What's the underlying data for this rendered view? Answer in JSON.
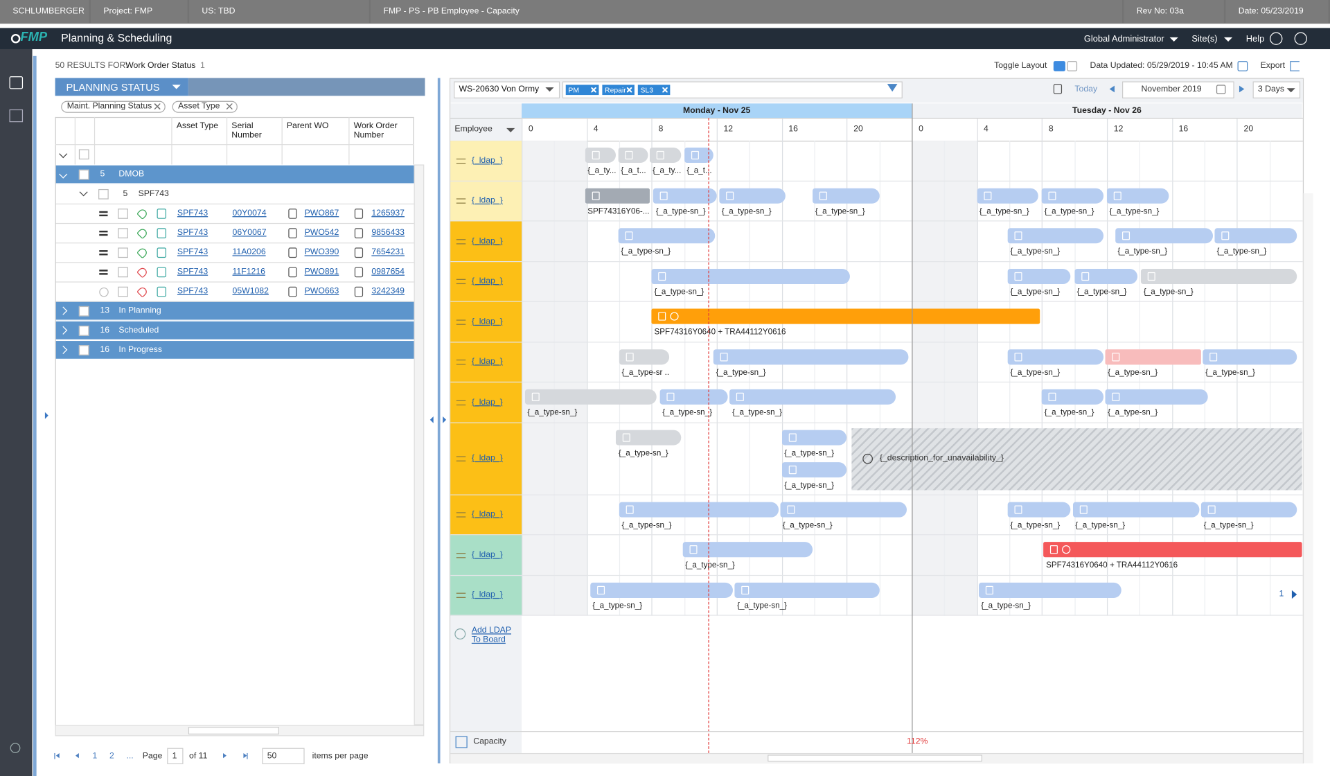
{
  "header": {
    "segments": [
      "SCHLUMBERGER",
      "Project:  FMP",
      "US:  TBD",
      "FMP - PS - PB Employee - Capacity",
      "Rev No:  03a",
      "Date:  05/23/2019"
    ],
    "logo": "FMP",
    "app_title": "Planning & Scheduling",
    "user": "Global Administrator",
    "sites": "Site(s)",
    "help": "Help"
  },
  "list": {
    "results_label": "50 RESULTS FOR:",
    "results_field": "Work Order Status",
    "results_count": "1",
    "group_by": "PLANNING STATUS",
    "filters": [
      "Maint. Planning Status",
      "Asset Type"
    ],
    "columns": [
      "Asset Type",
      "Serial Number",
      "Parent WO",
      "Work Order Number"
    ],
    "groups": [
      {
        "count": 5,
        "name": "DMOB"
      },
      {
        "count": 13,
        "name": "In Planning"
      },
      {
        "count": 16,
        "name": "Scheduled"
      },
      {
        "count": 16,
        "name": "In Progress"
      }
    ],
    "subgroup": {
      "count": 5,
      "name": "SPF743"
    },
    "rows": [
      {
        "asset": "SPF743",
        "serial": "00Y0074",
        "parent": "PWO867",
        "wo": "1265937",
        "tag": "#3aa757"
      },
      {
        "asset": "SPF743",
        "serial": "06Y0067",
        "parent": "PWO542",
        "wo": "9856433",
        "tag": "#3aa757"
      },
      {
        "asset": "SPF743",
        "serial": "11A0206",
        "parent": "PWO390",
        "wo": "7654231",
        "tag": "#3aa757"
      },
      {
        "asset": "SPF743",
        "serial": "11F1216",
        "parent": "PWO891",
        "wo": "0987654",
        "tag": "#e0474c"
      },
      {
        "asset": "SPF743",
        "serial": "05W1082",
        "parent": "PWO663",
        "wo": "3242349",
        "tag": "#e0474c",
        "disabled": true
      }
    ],
    "pager": {
      "pages": [
        "1",
        "2",
        "..."
      ],
      "page_label": "Page",
      "page": "1",
      "of": "of 11",
      "size": "50",
      "size_label": "items per page"
    }
  },
  "board": {
    "toggle": "Toggle Layout",
    "updated": "Data Updated: 05/29/2019 - 10:45 AM",
    "export": "Export",
    "name": "WS-20630 Von Ormy",
    "tags": [
      "PM",
      "Repair",
      "SL3"
    ],
    "today": "Today",
    "month": "November 2019",
    "range": "3 Days",
    "resource_col": "Employee",
    "days": [
      "Monday - Nov 25",
      "Tuesday - Nov 26"
    ],
    "hours": [
      0,
      4,
      8,
      12,
      16,
      20
    ],
    "now": 11.5,
    "palette": {
      "blue": "#b6cdf1",
      "gray": "#d5d8dc",
      "dark": "#a3aab3",
      "orange": "#ff9f0a",
      "pink": "#f8bcbc",
      "red": "#f4585a"
    },
    "rows": [
      {
        "label": "{_ldap_}",
        "color": "#fdf0b4",
        "events": [
          {
            "start": 3.9,
            "end": 5.8,
            "label": "{_a_ty...",
            "kind": "gray"
          },
          {
            "start": 5.95,
            "end": 7.8,
            "label": "{_a_t...",
            "kind": "gray"
          },
          {
            "start": 7.9,
            "end": 9.8,
            "label": "{_a_ty...",
            "kind": "gray"
          },
          {
            "start": 10.0,
            "end": 11.8,
            "label": "{_a_t...",
            "kind": "blue"
          }
        ]
      },
      {
        "label": "{_ldap_}",
        "color": "#fdf0b4",
        "events": [
          {
            "start": 3.9,
            "end": 7.9,
            "label": "SPF74316Y06-...",
            "kind": "dark"
          },
          {
            "start": 8.1,
            "end": 12.0,
            "label": "{_a_type-sn_}",
            "kind": "blue"
          },
          {
            "start": 12.15,
            "end": 16.2,
            "label": "{_a_type-sn_}",
            "kind": "blue"
          },
          {
            "start": 17.9,
            "end": 22.0,
            "label": "{_a_type-sn_}",
            "kind": "blue"
          },
          {
            "start": 28.0,
            "end": 31.8,
            "label": "{_a_type-sn_}",
            "kind": "blue"
          },
          {
            "start": 32.0,
            "end": 35.8,
            "label": "{_a_type-sn_}",
            "kind": "blue"
          },
          {
            "start": 36.0,
            "end": 39.8,
            "label": "{_a_type-sn_}",
            "kind": "blue"
          }
        ]
      },
      {
        "label": "{_ldap_}",
        "color": "#fcbf16",
        "events": [
          {
            "start": 5.95,
            "end": 11.9,
            "label": "{_a_type-sn_}",
            "kind": "blue"
          },
          {
            "start": 29.9,
            "end": 35.8,
            "label": "{_a_type-sn_}",
            "kind": "blue"
          },
          {
            "start": 36.5,
            "end": 42.5,
            "label": "{_a_type-sn_}",
            "kind": "blue"
          },
          {
            "start": 42.6,
            "end": 47.7,
            "label": "{_a_type-sn_}",
            "kind": "blue"
          }
        ]
      },
      {
        "label": "{_ldap_}",
        "color": "#fcbf16",
        "events": [
          {
            "start": 8.0,
            "end": 20.2,
            "label": "{_a_type-sn_}",
            "kind": "blue"
          },
          {
            "start": 29.9,
            "end": 33.75,
            "label": "{_a_type-sn_}",
            "kind": "blue"
          },
          {
            "start": 34.0,
            "end": 37.9,
            "label": "{_a_type-sn_}",
            "kind": "blue"
          },
          {
            "start": 38.1,
            "end": 47.7,
            "label": "{_a_type-sn_}",
            "kind": "gray"
          }
        ]
      },
      {
        "label": "{_ldap_}",
        "color": "#fcbf16",
        "events": [
          {
            "start": 8.0,
            "end": 31.9,
            "label": "SPF74316Y0640 + TRA44112Y0616",
            "kind": "orange"
          }
        ]
      },
      {
        "label": "{_ldap_}",
        "color": "#fcbf16",
        "events": [
          {
            "start": 6.0,
            "end": 9.1,
            "label": "{_a_type-sr ..",
            "kind": "gray"
          },
          {
            "start": 11.8,
            "end": 23.8,
            "label": "{_a_type-sn_}",
            "kind": "blue"
          },
          {
            "start": 29.9,
            "end": 35.8,
            "label": "{_a_type-sn_}",
            "kind": "blue"
          },
          {
            "start": 35.9,
            "end": 41.8,
            "label": "{_a_type-sn_}",
            "kind": "pink"
          },
          {
            "start": 41.9,
            "end": 47.7,
            "label": "{_a_type-sn_}",
            "kind": "blue"
          }
        ]
      },
      {
        "label": "{_ldap_}",
        "color": "#fcbf16",
        "events": [
          {
            "start": 0.2,
            "end": 8.3,
            "label": "{_a_type-sn_}",
            "kind": "gray"
          },
          {
            "start": 8.5,
            "end": 12.7,
            "label": "{_a_type-sn_}",
            "kind": "blue"
          },
          {
            "start": 12.8,
            "end": 23.0,
            "label": "{_a_type-sn_}",
            "kind": "blue"
          },
          {
            "start": 32.0,
            "end": 35.8,
            "label": "{_a_type-sn_}",
            "kind": "blue"
          },
          {
            "start": 35.9,
            "end": 42.2,
            "label": "{_a_type-sn_}",
            "kind": "blue"
          }
        ]
      },
      {
        "label": "{_ldap_}",
        "color": "#fcbf16",
        "events": [
          {
            "start": 5.8,
            "end": 9.8,
            "label": "{_a_type-sn_}",
            "kind": "gray"
          },
          {
            "start": 16.0,
            "end": 20.0,
            "label": "{_a_type-sn_}",
            "kind": "blue"
          },
          {
            "start": 16.0,
            "end": 20.0,
            "label": "{_a_type-sn_}",
            "kind": "blue",
            "lane": 1
          },
          {
            "start": 20.3,
            "end": 48,
            "label": "{_description_for_unavailability_}",
            "kind": "unavailable"
          }
        ]
      },
      {
        "label": "{_ldap_}",
        "color": "#fcbf16",
        "events": [
          {
            "start": 6.0,
            "end": 15.8,
            "label": "{_a_type-sn_}",
            "kind": "blue"
          },
          {
            "start": 15.9,
            "end": 23.7,
            "label": "{_a_type-sn_}",
            "kind": "blue"
          },
          {
            "start": 29.9,
            "end": 33.75,
            "label": "{_a_type-sn_}",
            "kind": "blue"
          },
          {
            "start": 33.9,
            "end": 41.7,
            "label": "{_a_type-sn_}",
            "kind": "blue"
          },
          {
            "start": 41.8,
            "end": 47.7,
            "label": "{_a_type-sn_}",
            "kind": "blue"
          }
        ]
      },
      {
        "label": "{_ldap_}",
        "color": "#a9dfc7",
        "events": [
          {
            "start": 9.9,
            "end": 17.9,
            "label": "{_a_type-sn_}",
            "kind": "blue"
          },
          {
            "start": 32.1,
            "end": 48,
            "label": "SPF74316Y0640 + TRA44112Y0616",
            "kind": "red"
          }
        ]
      },
      {
        "label": "{_ldap_}",
        "color": "#a9dfc7",
        "events": [
          {
            "start": 4.2,
            "end": 13.0,
            "label": "{_a_type-sn_}",
            "kind": "blue"
          },
          {
            "start": 13.1,
            "end": 22.0,
            "label": "{_a_type-sn_}",
            "kind": "blue"
          },
          {
            "start": 28.1,
            "end": 36.9,
            "label": "{_a_type-sn_}",
            "kind": "blue"
          }
        ]
      }
    ],
    "more": "1",
    "add": "Add LDAP To Board",
    "capacity_label": "Capacity",
    "capacity": "112%"
  }
}
